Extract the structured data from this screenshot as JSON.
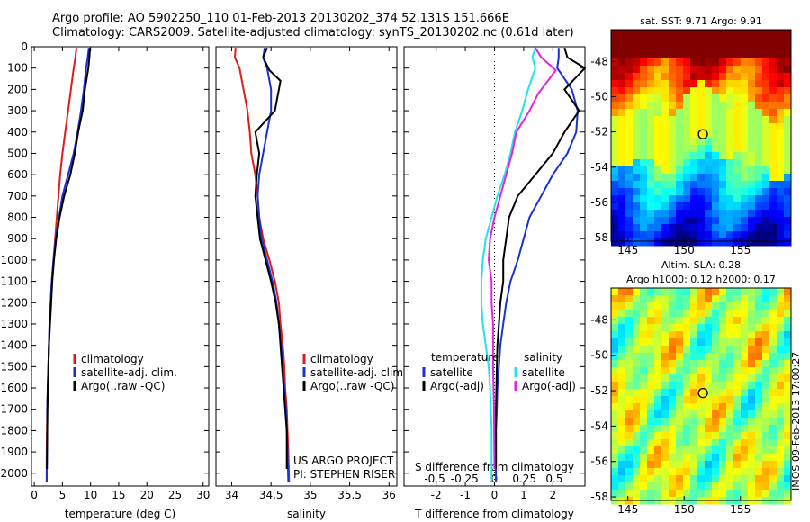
{
  "header": {
    "line1": "Argo profile: AO 5902250_110 01-Feb-2013 20130202_374 52.131S 151.666E",
    "line2": "Climatology: CARS2009. Satellite-adjusted climatology: synTS_20130202.nc (0.61d later)"
  },
  "credit": {
    "project": "US ARGO PROJECT",
    "pi": "PI: STEPHEN RISER"
  },
  "side_label": "IMOS 09-Feb-2013 17:00:27",
  "colors": {
    "climatology": "#e01b1b",
    "satellite": "#1733d1",
    "argo": "#000000",
    "satellite_s": "#22e3ea",
    "argo_s": "#e621e0"
  },
  "chart_data": [
    {
      "type": "line",
      "name": "temperature-profile",
      "xlabel": "temperature (deg C)",
      "ylabel": "",
      "xlim": [
        -0.5,
        31
      ],
      "ylim": [
        2060,
        0
      ],
      "xticks": [
        0,
        5,
        10,
        15,
        20,
        25,
        30
      ],
      "yticks": [
        0,
        100,
        200,
        300,
        400,
        500,
        600,
        700,
        800,
        900,
        1000,
        1100,
        1200,
        1300,
        1400,
        1500,
        1600,
        1700,
        1800,
        1900,
        2000
      ],
      "legend": [
        "climatology",
        "satellite-adj. clim.",
        "Argo(..raw -QC)"
      ],
      "legend_position": "lower-center",
      "series": [
        {
          "name": "climatology",
          "color_key": "climatology",
          "x": [
            7.5,
            7.3,
            7.0,
            6.5,
            6.0,
            5.5,
            5.0,
            4.6,
            4.3,
            4.0,
            3.7,
            3.4,
            3.1,
            2.9,
            2.7,
            2.6,
            2.5,
            2.4,
            2.3,
            2.25,
            2.2,
            2.2
          ],
          "y": [
            5,
            50,
            100,
            200,
            300,
            400,
            500,
            600,
            700,
            800,
            900,
            1000,
            1100,
            1200,
            1300,
            1400,
            1500,
            1600,
            1700,
            1800,
            1900,
            2040
          ]
        },
        {
          "name": "satellite-adj. clim.",
          "color_key": "satellite",
          "x": [
            9.7,
            9.5,
            9.2,
            8.8,
            8.3,
            7.7,
            7.0,
            6.0,
            5.0,
            4.4,
            3.8,
            3.4,
            3.1,
            2.9,
            2.7,
            2.6,
            2.5,
            2.4,
            2.3,
            2.3,
            2.25,
            2.2
          ],
          "y": [
            5,
            50,
            100,
            200,
            300,
            400,
            500,
            600,
            700,
            800,
            900,
            1000,
            1100,
            1200,
            1300,
            1400,
            1500,
            1600,
            1700,
            1800,
            1900,
            2040
          ]
        },
        {
          "name": "Argo(..raw -QC)",
          "color_key": "argo",
          "x": [
            9.9,
            9.8,
            9.6,
            9.0,
            8.6,
            7.8,
            7.2,
            6.4,
            5.3,
            4.5,
            3.9,
            3.5,
            3.2,
            3.0,
            2.8,
            2.6,
            2.5,
            2.4,
            2.35,
            2.3,
            2.25
          ],
          "y": [
            5,
            50,
            100,
            200,
            300,
            400,
            500,
            600,
            700,
            800,
            900,
            1000,
            1100,
            1200,
            1300,
            1400,
            1500,
            1600,
            1700,
            1800,
            1980
          ]
        }
      ]
    },
    {
      "type": "line",
      "name": "salinity-profile",
      "xlabel": "salinity",
      "xlim": [
        33.8,
        36.1
      ],
      "ylim": [
        2060,
        0
      ],
      "xticks": [
        34,
        34.5,
        35,
        35.5,
        36
      ],
      "legend": [
        "climatology",
        "satellite-adj. clim.",
        "Argo(..raw -QC)"
      ],
      "legend_position": "lower-right",
      "series": [
        {
          "name": "climatology",
          "color_key": "climatology",
          "x": [
            34.05,
            34.04,
            34.1,
            34.15,
            34.2,
            34.23,
            34.25,
            34.3,
            34.33,
            34.35,
            34.4,
            34.48,
            34.55,
            34.6,
            34.62,
            34.65,
            34.67,
            34.68,
            34.7,
            34.71,
            34.72,
            34.73
          ],
          "y": [
            5,
            50,
            100,
            200,
            300,
            400,
            500,
            600,
            700,
            800,
            900,
            1000,
            1100,
            1200,
            1300,
            1400,
            1500,
            1600,
            1700,
            1800,
            1900,
            2040
          ]
        },
        {
          "name": "satellite-adj. clim.",
          "color_key": "satellite",
          "x": [
            34.42,
            34.4,
            34.45,
            34.5,
            34.5,
            34.45,
            34.4,
            34.35,
            34.33,
            34.35,
            34.38,
            34.45,
            34.52,
            34.57,
            34.6,
            34.63,
            34.65,
            34.67,
            34.69,
            34.7,
            34.71,
            34.72
          ],
          "y": [
            5,
            50,
            100,
            200,
            300,
            400,
            500,
            600,
            700,
            800,
            900,
            1000,
            1100,
            1200,
            1300,
            1400,
            1500,
            1600,
            1700,
            1800,
            1900,
            2040
          ]
        },
        {
          "name": "Argo(..raw -QC)",
          "color_key": "argo",
          "x": [
            34.45,
            34.4,
            34.48,
            34.62,
            34.55,
            34.3,
            34.35,
            34.32,
            34.3,
            34.33,
            34.36,
            34.43,
            34.5,
            34.56,
            34.6,
            34.62,
            34.64,
            34.66,
            34.68,
            34.7,
            34.7
          ],
          "y": [
            5,
            50,
            110,
            160,
            300,
            400,
            500,
            600,
            700,
            800,
            900,
            1000,
            1100,
            1200,
            1300,
            1400,
            1500,
            1600,
            1700,
            1800,
            1980
          ]
        }
      ]
    },
    {
      "type": "line",
      "name": "difference-profile",
      "xlabel": "T difference from climatology",
      "top_xlabel": "S difference from climatology",
      "xlim": [
        -3.1,
        3.1
      ],
      "ylim": [
        2060,
        0
      ],
      "xticks": [
        -2,
        -1,
        0,
        1,
        2
      ],
      "top_xticks": [
        "-0.5",
        "-0.25",
        "0",
        "0.25",
        "0.5"
      ],
      "legend_titles": [
        "temperature",
        "salinity"
      ],
      "legend_left": [
        "satellite",
        "Argo(-adj)"
      ],
      "legend_right": [
        "satellite",
        "Argo(-adj)"
      ],
      "legend_position": "lower-center",
      "series": [
        {
          "name": "satellite",
          "group": "temperature",
          "color_key": "satellite",
          "x": [
            2.2,
            2.2,
            2.15,
            2.65,
            2.85,
            2.8,
            2.5,
            2.0,
            1.6,
            1.2,
            1.0,
            0.8,
            0.55,
            0.4,
            0.3,
            0.2,
            0.15,
            0.1,
            0.08,
            0.05,
            0.05
          ],
          "y": [
            5,
            50,
            100,
            200,
            300,
            400,
            500,
            600,
            700,
            800,
            900,
            1000,
            1100,
            1200,
            1300,
            1400,
            1500,
            1600,
            1700,
            1800,
            2040
          ]
        },
        {
          "name": "Argo(-adj)",
          "group": "temperature",
          "color_key": "argo",
          "x": [
            2.4,
            2.5,
            3.1,
            2.4,
            2.9,
            2.4,
            2.0,
            1.4,
            0.8,
            0.5,
            0.4,
            0.3,
            0.3,
            0.2,
            0.15,
            0.1,
            0.08,
            0.05,
            0.05
          ],
          "y": [
            5,
            50,
            100,
            200,
            300,
            400,
            500,
            600,
            700,
            800,
            900,
            1000,
            1100,
            1200,
            1300,
            1400,
            1500,
            1700,
            1980
          ]
        },
        {
          "name": "satellite",
          "group": "salinity",
          "color_key": "satellite_s",
          "x": [
            1.4,
            1.3,
            1.4,
            1.15,
            0.95,
            0.7,
            0.55,
            0.35,
            0.1,
            -0.1,
            -0.3,
            -0.4,
            -0.45,
            -0.45,
            -0.4,
            -0.3,
            -0.2,
            -0.15,
            -0.1,
            -0.1
          ],
          "y": [
            5,
            50,
            100,
            200,
            300,
            400,
            500,
            600,
            700,
            800,
            900,
            1000,
            1100,
            1200,
            1300,
            1400,
            1500,
            1600,
            1800,
            2040
          ]
        },
        {
          "name": "Argo(-adj)",
          "group": "salinity",
          "color_key": "argo_s",
          "x": [
            1.4,
            1.6,
            2.1,
            1.5,
            1.2,
            0.75,
            0.6,
            0.4,
            0.2,
            0.0,
            -0.15,
            -0.2,
            -0.1,
            -0.1,
            -0.05,
            -0.05,
            -0.05,
            -0.02,
            0.0
          ],
          "y": [
            5,
            50,
            110,
            220,
            300,
            400,
            500,
            600,
            700,
            800,
            900,
            1000,
            1100,
            1200,
            1300,
            1400,
            1500,
            1700,
            1980
          ]
        }
      ]
    },
    {
      "type": "heatmap",
      "name": "sst-map",
      "title": "sat. SST: 9.71 Argo: 9.91",
      "xlim": [
        143.5,
        159.5
      ],
      "ylim": [
        -58.2,
        -46.2
      ],
      "xticks": [
        145,
        150,
        155
      ],
      "yticks": [
        -48,
        -50,
        -52,
        -54,
        -56,
        -58
      ],
      "marker": {
        "lon": 151.666,
        "lat": -52.131
      }
    },
    {
      "type": "heatmap",
      "name": "sla-map",
      "title": "Altim. SLA: 0.28",
      "subtitle": "Argo h1000: 0.12 h2000: 0.17",
      "xlim": [
        143.5,
        159.5
      ],
      "ylim": [
        -58.2,
        -46.2
      ],
      "xticks": [
        145,
        150,
        155
      ],
      "yticks": [
        -48,
        -50,
        -52,
        -54,
        -56,
        -58
      ],
      "marker": {
        "lon": 151.666,
        "lat": -52.131
      }
    }
  ]
}
